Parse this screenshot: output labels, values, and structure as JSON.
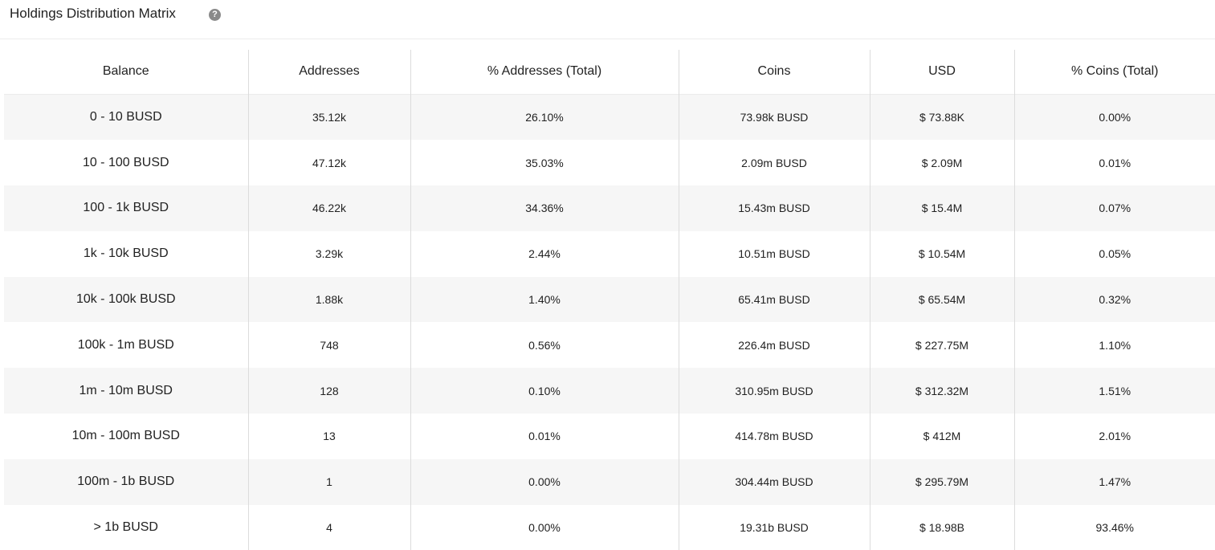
{
  "panel": {
    "title": "Holdings Distribution Matrix",
    "help_icon": "question-circle-icon"
  },
  "table": {
    "headers": {
      "balance": "Balance",
      "addresses": "Addresses",
      "pct_addresses": "% Addresses (Total)",
      "coins": "Coins",
      "usd": "USD",
      "pct_coins": "% Coins (Total)"
    },
    "rows": [
      {
        "balance": "0 - 10 BUSD",
        "addresses": "35.12k",
        "pct_addresses": "26.10%",
        "coins": "73.98k BUSD",
        "usd": "$ 73.88K",
        "pct_coins": "0.00%"
      },
      {
        "balance": "10 - 100 BUSD",
        "addresses": "47.12k",
        "pct_addresses": "35.03%",
        "coins": "2.09m BUSD",
        "usd": "$ 2.09M",
        "pct_coins": "0.01%"
      },
      {
        "balance": "100 - 1k BUSD",
        "addresses": "46.22k",
        "pct_addresses": "34.36%",
        "coins": "15.43m BUSD",
        "usd": "$ 15.4M",
        "pct_coins": "0.07%"
      },
      {
        "balance": "1k - 10k BUSD",
        "addresses": "3.29k",
        "pct_addresses": "2.44%",
        "coins": "10.51m BUSD",
        "usd": "$ 10.54M",
        "pct_coins": "0.05%"
      },
      {
        "balance": "10k - 100k BUSD",
        "addresses": "1.88k",
        "pct_addresses": "1.40%",
        "coins": "65.41m BUSD",
        "usd": "$ 65.54M",
        "pct_coins": "0.32%"
      },
      {
        "balance": "100k - 1m BUSD",
        "addresses": "748",
        "pct_addresses": "0.56%",
        "coins": "226.4m BUSD",
        "usd": "$ 227.75M",
        "pct_coins": "1.10%"
      },
      {
        "balance": "1m - 10m BUSD",
        "addresses": "128",
        "pct_addresses": "0.10%",
        "coins": "310.95m BUSD",
        "usd": "$ 312.32M",
        "pct_coins": "1.51%"
      },
      {
        "balance": "10m - 100m BUSD",
        "addresses": "13",
        "pct_addresses": "0.01%",
        "coins": "414.78m BUSD",
        "usd": "$ 412M",
        "pct_coins": "2.01%"
      },
      {
        "balance": "100m - 1b BUSD",
        "addresses": "1",
        "pct_addresses": "0.00%",
        "coins": "304.44m BUSD",
        "usd": "$ 295.79M",
        "pct_coins": "1.47%"
      },
      {
        "balance": "> 1b BUSD",
        "addresses": "4",
        "pct_addresses": "0.00%",
        "coins": "19.31b BUSD",
        "usd": "$ 18.98B",
        "pct_coins": "93.46%"
      }
    ]
  }
}
